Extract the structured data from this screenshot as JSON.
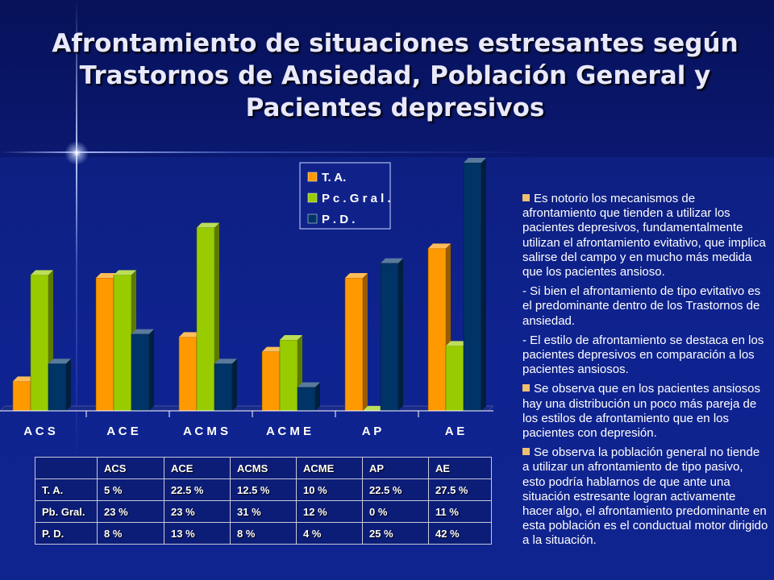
{
  "title": "Afrontamiento de situaciones estresantes según Trastornos de Ansiedad, Población General y Pacientes depresivos",
  "colors": {
    "ta": "#ff9900",
    "pg": "#99cc00",
    "pd": "#003366"
  },
  "chart_data": {
    "type": "bar",
    "categories": [
      "A C S",
      "A C E",
      "A C M S",
      "A C M E",
      "A P",
      "A E"
    ],
    "series": [
      {
        "name": "T. A.",
        "values": [
          5,
          22.5,
          12.5,
          10,
          22.5,
          27.5
        ]
      },
      {
        "name": "P c . G r a l .",
        "values": [
          23,
          23,
          31,
          12,
          0,
          11
        ]
      },
      {
        "name": "P . D .",
        "values": [
          8,
          13,
          8,
          4,
          25,
          42
        ]
      }
    ],
    "ylim": [
      0,
      42
    ],
    "legend_position": "top-right"
  },
  "table": {
    "headers": [
      "",
      "ACS",
      "ACE",
      "ACMS",
      "ACME",
      "AP",
      "AE"
    ],
    "rows": [
      [
        "T. A.",
        "5 %",
        "22.5 %",
        "12.5 %",
        "10 %",
        "22.5 %",
        "27.5 %"
      ],
      [
        "Pb. Gral.",
        "23 %",
        "23 %",
        "31 %",
        "12 %",
        "0 %",
        "11 %"
      ],
      [
        "P. D.",
        "8 %",
        "13 %",
        "8 %",
        "4 %",
        "25 %",
        "42 %"
      ]
    ]
  },
  "side_text": [
    {
      "bullet": true,
      "text": "Es notorio los mecanismos de afrontamiento que tienden a utilizar los pacientes depresivos, fundamentalmente utilizan el afrontamiento evitativo, que implica salirse del campo y en mucho más medida que los pacientes ansioso."
    },
    {
      "bullet": false,
      "text": "- Si bien el afrontamiento de tipo evitativo es el predominante dentro de los Trastornos de ansiedad."
    },
    {
      "bullet": false,
      "text": "- El estilo de afrontamiento se destaca en los pacientes depresivos en comparación a los pacientes ansiosos."
    },
    {
      "bullet": true,
      "text": "Se observa que en los pacientes ansiosos hay una distribución un poco más pareja de los estilos de afrontamiento que en los pacientes con depresión."
    },
    {
      "bullet": true,
      "text": "Se observa la población general no tiende a utilizar un afrontamiento de tipo pasivo, esto podría hablarnos de que ante una situación estresante logran activamente hacer algo, el afrontamiento predominante en esta población es el conductual motor dirigido a la situación."
    }
  ]
}
